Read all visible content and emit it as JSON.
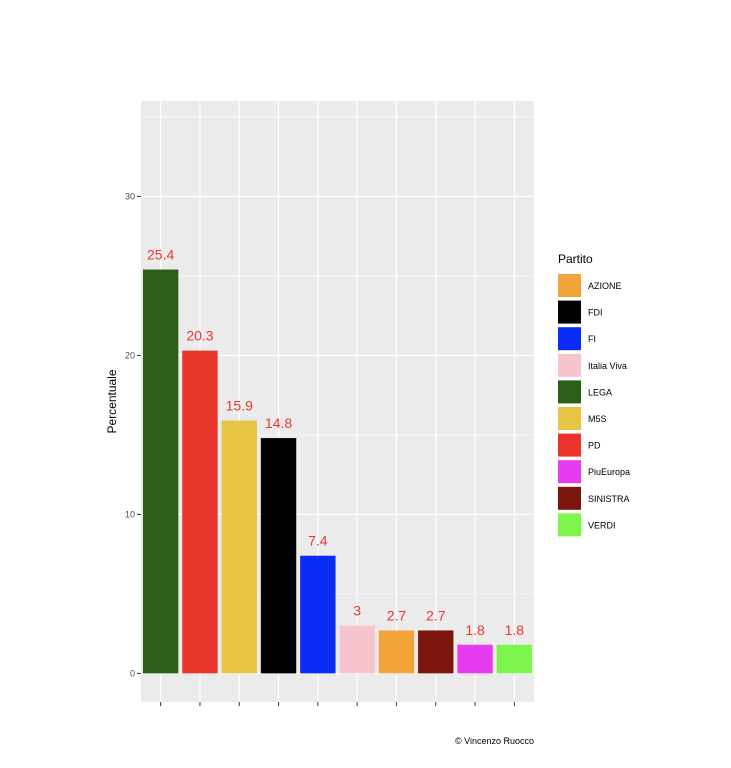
{
  "chart_data": {
    "type": "bar",
    "categories": [
      "LEGA",
      "PD",
      "M5S",
      "FDI",
      "FI",
      "Italia Viva",
      "AZIONE",
      "SINISTRA",
      "PiuEuropa",
      "VERDI"
    ],
    "values": [
      25.4,
      20.3,
      15.9,
      14.8,
      7.4,
      3,
      2.7,
      2.7,
      1.8,
      1.8
    ],
    "value_labels": [
      "25.4",
      "20.3",
      "15.9",
      "14.8",
      "7.4",
      "3",
      "2.7",
      "2.7",
      "1.8",
      "1.8"
    ],
    "bar_colors": [
      "#2c5e18",
      "#e8342a",
      "#e8c444",
      "#000000",
      "#0a2cf5",
      "#f7c3cc",
      "#f2a43b",
      "#7b160f",
      "#e63cf0",
      "#7ef54a"
    ],
    "ylabel": "Percentuale",
    "xlabel": "",
    "ylim": [
      -1.8,
      36
    ],
    "yticks": [
      0,
      10,
      20,
      30
    ],
    "ytick_labels": [
      "0",
      "10",
      "20",
      "30"
    ],
    "grid": true,
    "legend": {
      "title": "Partito",
      "position": "right",
      "entries": [
        {
          "label": "AZIONE",
          "color": "#f2a43b"
        },
        {
          "label": "FDI",
          "color": "#000000"
        },
        {
          "label": "FI",
          "color": "#0a2cf5"
        },
        {
          "label": "Italia Viva",
          "color": "#f7c3cc"
        },
        {
          "label": "LEGA",
          "color": "#2c5e18"
        },
        {
          "label": "M5S",
          "color": "#e8c444"
        },
        {
          "label": "PD",
          "color": "#e8342a"
        },
        {
          "label": "PiuEuropa",
          "color": "#e63cf0"
        },
        {
          "label": "SINISTRA",
          "color": "#7b160f"
        },
        {
          "label": "VERDI",
          "color": "#7ef54a"
        }
      ]
    },
    "panel_color": "#ebebeb",
    "grid_color": "#ffffff",
    "label_color": "#e8382e",
    "caption": "© Vincenzo Ruocco"
  }
}
